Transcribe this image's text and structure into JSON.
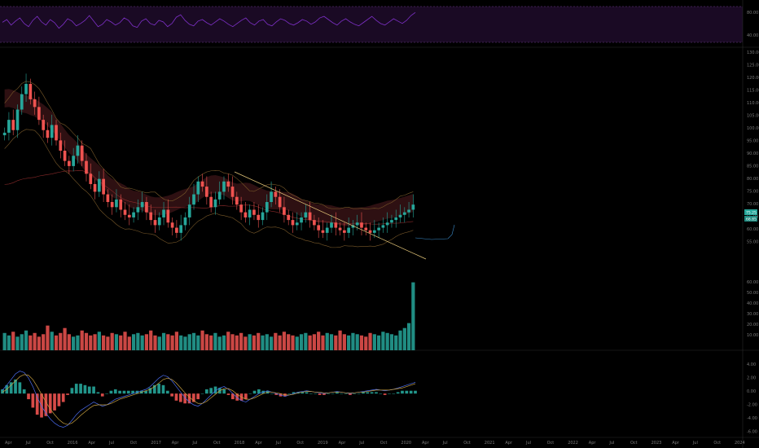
{
  "colors": {
    "background": "#000000",
    "up": "#26a69a",
    "down": "#ef5350",
    "rsi_line": "#7e30c8",
    "rsi_band": "#1a0a24",
    "rsi_border": "#6a3a8a",
    "trendline": "#e6c87a",
    "cloud": "#3a1416",
    "bollinger": "#7a5a2a",
    "macd_line": "#4a6cf0",
    "signal_line": "#c8a040",
    "grid": "#2a2a2a"
  },
  "x_axis": {
    "labels": [
      "Apr",
      "Jul",
      "Oct",
      "2016",
      "Apr",
      "Jul",
      "Oct",
      "2017",
      "Apr",
      "Jul",
      "Oct",
      "2018",
      "Apr",
      "Jul",
      "Oct",
      "2019",
      "Apr",
      "Jul",
      "Oct",
      "2020",
      "Apr",
      "Jul",
      "Oct",
      "2021",
      "Apr",
      "Jul",
      "Oct",
      "2022",
      "Apr",
      "Jul",
      "Oct",
      "2023",
      "Apr",
      "Jul",
      "Oct",
      "2024"
    ]
  },
  "price_axis_labels": [
    "130.00",
    "125.00",
    "120.00",
    "115.00",
    "110.00",
    "105.00",
    "100.00",
    "95.00",
    "90.00",
    "85.00",
    "80.00",
    "75.00",
    "70.00",
    "65.00",
    "60.00",
    "55.00"
  ],
  "price_tags": {
    "last": "75.25",
    "prev": "68.85"
  },
  "rsi_axis_labels": [
    "80.00",
    "40.00"
  ],
  "volume_axis_labels": [
    "60.00",
    "50.00",
    "40.00",
    "30.00",
    "20.00",
    "10.00"
  ],
  "macd_axis_labels": [
    "4.00",
    "2.00",
    "0.00",
    "-2.00",
    "-4.00",
    "-6.00"
  ],
  "chart_data": [
    {
      "type": "line",
      "panel": "rsi",
      "ylim": [
        0,
        100
      ],
      "levels": [
        70,
        30
      ],
      "values": [
        55,
        62,
        48,
        58,
        66,
        52,
        44,
        60,
        70,
        56,
        48,
        62,
        54,
        40,
        50,
        64,
        58,
        46,
        52,
        60,
        72,
        58,
        44,
        50,
        62,
        56,
        48,
        54,
        66,
        60,
        46,
        42,
        58,
        64,
        52,
        48,
        60,
        56,
        44,
        52,
        68,
        74,
        60,
        50,
        46,
        58,
        62,
        54,
        48,
        56,
        64,
        58,
        50,
        44,
        52,
        60,
        66,
        54,
        48,
        58,
        62,
        50,
        46,
        56,
        64,
        60,
        52,
        48,
        54,
        62,
        58,
        50,
        56,
        66,
        70,
        62,
        54,
        48,
        58,
        64,
        56,
        50,
        46,
        54,
        62,
        70,
        60,
        52,
        48,
        56,
        64,
        58,
        52,
        60,
        72,
        80
      ]
    },
    {
      "type": "candlestick",
      "panel": "price",
      "ylim": [
        50,
        135
      ],
      "trendline": [
        [
          90,
          205
        ],
        [
          96,
          222
        ]
      ],
      "values_close": [
        103,
        108,
        104,
        112,
        118,
        122,
        116,
        113,
        108,
        104,
        101,
        106,
        100,
        96,
        92,
        90,
        94,
        98,
        92,
        87,
        83,
        80,
        85,
        79,
        76,
        74,
        77,
        73,
        71,
        70,
        72,
        74,
        76,
        72,
        69,
        67,
        70,
        73,
        68,
        66,
        64,
        67,
        70,
        75,
        79,
        84,
        82,
        78,
        74,
        77,
        80,
        84,
        82,
        78,
        75,
        72,
        70,
        73,
        71,
        69,
        72,
        76,
        80,
        78,
        74,
        71,
        69,
        67,
        68,
        70,
        72,
        69,
        67,
        65,
        64,
        66,
        68,
        66,
        65,
        64,
        66,
        67,
        68,
        66,
        65,
        64,
        65,
        66,
        67,
        68,
        69,
        70,
        71,
        72,
        73,
        75
      ]
    },
    {
      "type": "bar",
      "panel": "volume",
      "ylim": [
        0,
        62
      ],
      "values": [
        14,
        12,
        15,
        11,
        13,
        16,
        12,
        14,
        11,
        13,
        20,
        15,
        12,
        14,
        18,
        13,
        11,
        12,
        16,
        14,
        12,
        13,
        15,
        12,
        11,
        14,
        13,
        12,
        15,
        11,
        13,
        14,
        12,
        13,
        16,
        12,
        11,
        14,
        13,
        12,
        15,
        12,
        11,
        13,
        14,
        12,
        16,
        13,
        12,
        14,
        11,
        12,
        15,
        13,
        12,
        14,
        11,
        13,
        12,
        14,
        12,
        13,
        11,
        14,
        12,
        15,
        13,
        12,
        11,
        13,
        14,
        12,
        13,
        15,
        12,
        14,
        13,
        12,
        16,
        13,
        12,
        14,
        13,
        12,
        11,
        14,
        13,
        12,
        15,
        14,
        13,
        12,
        16,
        18,
        22,
        55
      ]
    },
    {
      "type": "line",
      "panel": "macd",
      "ylim": [
        -6,
        5
      ],
      "macd": [
        0.5,
        1.2,
        2.0,
        2.8,
        3.2,
        3.0,
        2.2,
        1.0,
        -0.5,
        -1.8,
        -2.8,
        -3.6,
        -4.2,
        -4.6,
        -4.8,
        -4.5,
        -3.8,
        -3.0,
        -2.4,
        -2.0,
        -1.6,
        -1.2,
        -1.5,
        -1.8,
        -1.6,
        -1.2,
        -0.8,
        -0.6,
        -0.4,
        -0.2,
        0.0,
        0.2,
        0.4,
        0.6,
        1.0,
        1.6,
        2.2,
        2.6,
        2.4,
        1.8,
        1.0,
        0.2,
        -0.6,
        -1.2,
        -1.6,
        -1.8,
        -1.4,
        -0.8,
        -0.2,
        0.4,
        0.8,
        1.0,
        0.6,
        0.0,
        -0.6,
        -1.0,
        -1.2,
        -0.8,
        -0.4,
        0.0,
        0.2,
        0.4,
        0.2,
        0.0,
        -0.2,
        -0.4,
        -0.2,
        0.0,
        0.2,
        0.3,
        0.4,
        0.3,
        0.2,
        0.1,
        0.0,
        0.1,
        0.2,
        0.3,
        0.2,
        0.1,
        0.0,
        0.1,
        0.2,
        0.3,
        0.4,
        0.5,
        0.6,
        0.5,
        0.4,
        0.5,
        0.6,
        0.8,
        1.0,
        1.2,
        1.4,
        1.6
      ],
      "signal": [
        0.2,
        0.6,
        1.2,
        1.8,
        2.4,
        2.7,
        2.6,
        2.0,
        1.0,
        -0.1,
        -1.2,
        -2.2,
        -3.0,
        -3.7,
        -4.2,
        -4.4,
        -4.2,
        -3.7,
        -3.1,
        -2.6,
        -2.1,
        -1.7,
        -1.6,
        -1.6,
        -1.6,
        -1.4,
        -1.1,
        -0.8,
        -0.6,
        -0.4,
        -0.2,
        0.0,
        0.2,
        0.4,
        0.6,
        1.0,
        1.5,
        2.0,
        2.2,
        2.0,
        1.5,
        0.8,
        0.1,
        -0.5,
        -1.0,
        -1.4,
        -1.4,
        -1.1,
        -0.6,
        -0.1,
        0.4,
        0.7,
        0.7,
        0.4,
        -0.1,
        -0.5,
        -0.8,
        -0.8,
        -0.6,
        -0.3,
        0.0,
        0.2,
        0.2,
        0.1,
        0.0,
        -0.2,
        -0.2,
        -0.1,
        0.1,
        0.2,
        0.3,
        0.3,
        0.2,
        0.2,
        0.1,
        0.1,
        0.2,
        0.2,
        0.2,
        0.1,
        0.1,
        0.1,
        0.2,
        0.2,
        0.3,
        0.4,
        0.5,
        0.5,
        0.5,
        0.5,
        0.6,
        0.7,
        0.8,
        1.0,
        1.2,
        1.4
      ]
    }
  ]
}
